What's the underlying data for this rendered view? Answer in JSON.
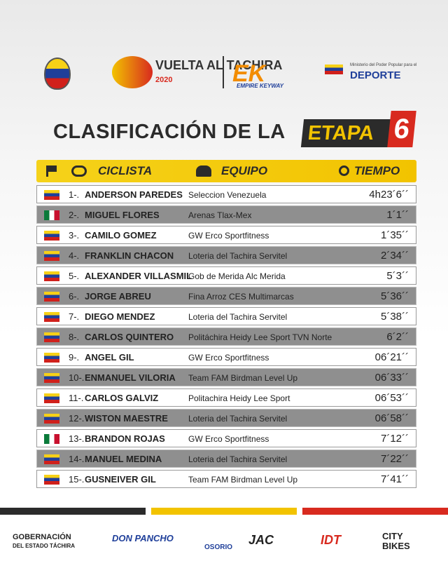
{
  "header": {
    "vuelta": "VUELTA AL TACHIRA",
    "vuelta_year": "2020",
    "empire": "EMPIRE KEYWAY",
    "ministry": "Ministerio del Poder Popular para el",
    "deporte": "DEPORTE"
  },
  "title": {
    "text": "CLASIFICACIÓN DE LA",
    "etapa": "ETAPA",
    "number": "6"
  },
  "table": {
    "headers": [
      "CICLISTA",
      "EQUIPO",
      "TIEMPO"
    ],
    "rows": [
      [
        "1-.",
        "ANDERSON PAREDES",
        "Seleccion Venezuela",
        "4h23´6´´"
      ],
      [
        "2-.",
        "MIGUEL FLORES",
        "Arenas Tlax-Mex",
        "1´1´´"
      ],
      [
        "3-.",
        "CAMILO GOMEZ",
        "GW Erco Sportfitness",
        "1´35´´"
      ],
      [
        "4-.",
        "FRANKLIN CHACON",
        "Loteria del Tachira Servitel",
        "2´34´´"
      ],
      [
        "5-.",
        "ALEXANDER VILLASMIL",
        "Gob de Merida Alc Merida",
        "5´3´´"
      ],
      [
        "6-.",
        "JORGE ABREU",
        "Fina Arroz CES Multimarcas",
        "5´36´´"
      ],
      [
        "7-.",
        "DIEGO MENDEZ",
        "Loteria del Tachira Servitel",
        "5´38´´"
      ],
      [
        "8-.",
        "CARLOS QUINTERO",
        "Politáchira Heidy Lee Sport TVN Norte",
        "6´2´´"
      ],
      [
        "9-.",
        "ANGEL GIL",
        "GW Erco Sportfitness",
        "06´21´´"
      ],
      [
        "10-.",
        "ENMANUEL VILORIA",
        "Team FAM Birdman Level Up",
        "06´33´´"
      ],
      [
        "11-.",
        "CARLOS GALVIZ",
        "Politachira Heidy Lee Sport",
        "06´53´´"
      ],
      [
        "12-.",
        "WISTON MAESTRE",
        "Loteria del Tachira Servitel",
        "06´58´´"
      ],
      [
        "13-.",
        "BRANDON ROJAS",
        "GW Erco Sportfitness",
        "7´12´´"
      ],
      [
        "14-.",
        "MANUEL MEDINA",
        "Loteria del Tachira Servitel",
        "7´22´´"
      ],
      [
        "15-.",
        "GUSNEIVER GIL",
        "Team FAM Birdman Level Up",
        "7´41´´"
      ]
    ]
  },
  "sponsors": [
    "GOBERNACIÓN",
    "DEL ESTADO TÁCHIRA",
    "DON PANCHO",
    "OSORIO",
    "JAC",
    "IDT",
    "CITY",
    "BIKES"
  ]
}
